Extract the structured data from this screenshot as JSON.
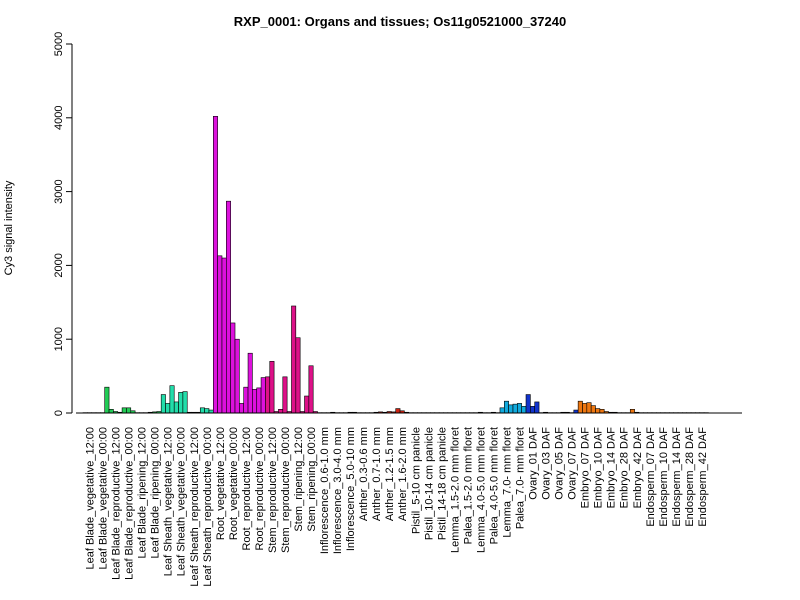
{
  "chart_data": {
    "type": "bar",
    "title": "RXP_0001: Organs and tissues; Os11g0521000_37240",
    "ylabel": "Cy3 signal intensity",
    "xlabel": "",
    "ylim": [
      0,
      5000
    ],
    "yticks": [
      0,
      1000,
      2000,
      3000,
      4000,
      5000
    ],
    "grid": false,
    "tick_labels": [
      "Leaf Blade_vegetative_12:00",
      "Leaf Blade_vegetative_00:00",
      "Leaf Blade_reproductive_12:00",
      "Leaf Blade_reproductive_00:00",
      "Leaf Blade_ripening_12:00",
      "Leaf Blade_ripening_00:00",
      "Leaf Sheath_vegetative_12:00",
      "Leaf Sheath_vegetative_00:00",
      "Leaf Sheath_reproductive_12:00",
      "Leaf Sheath_reproductive_00:00",
      "Root_vegetative_12:00",
      "Root_vegetative_00:00",
      "Root_reproductive_12:00",
      "Root_reproductive_00:00",
      "Stem_reproductive_12:00",
      "Stem_reproductive_00:00",
      "Stem_ripening_12:00",
      "Stem_ripening_00:00",
      "Inflorescence_0.6-1.0 mm",
      "Inflorescence_3.0-4.0 mm",
      "Inflorescence_5.0-10 mm",
      "Anther_0.3-0.6 mm",
      "Anther_0.7-1.0 mm",
      "Anther_1.2-1.5 mm",
      "Anther_1.6-2.0 mm",
      "Pistil_5-10 cm panicle",
      "Pistil_10-14 cm panicle",
      "Pistil_14-18 cm panicle",
      "Lemma_1.5-2.0 mm floret",
      "Palea_1.5-2.0 mm floret",
      "Lemma_4.0-5.0 mm floret",
      "Palea_4.0-5.0 mm floret",
      "Lemma_7.0- mm floret",
      "Palea_7.0- mm floret",
      "Ovary_01 DAF",
      "Ovary_03 DAF",
      "Ovary_05 DAF",
      "Ovary_07 DAF",
      "Embryo_07 DAF",
      "Embryo_10 DAF",
      "Embryo_14 DAF",
      "Embryo_28 DAF",
      "Embryo_42 DAF",
      "Endosperm_07 DAF",
      "Endosperm_10 DAF",
      "Endosperm_14 DAF",
      "Endosperm_28 DAF",
      "Endosperm_42 DAF"
    ],
    "groups": [
      {
        "color": "#22cc55",
        "values": [
          5,
          5,
          5
        ]
      },
      {
        "color": "#22cc55",
        "values": [
          5,
          5,
          350
        ]
      },
      {
        "color": "#22cc55",
        "values": [
          50,
          20,
          10
        ]
      },
      {
        "color": "#22cc55",
        "values": [
          70,
          70,
          30
        ]
      },
      {
        "color": "#22cc55",
        "values": [
          5,
          5,
          5
        ]
      },
      {
        "color": "#22cc55",
        "values": [
          10,
          15,
          20
        ]
      },
      {
        "color": "#22ddaa",
        "values": [
          250,
          130,
          370
        ]
      },
      {
        "color": "#22ddaa",
        "values": [
          150,
          280,
          290
        ]
      },
      {
        "color": "#22ddaa",
        "values": [
          10,
          10,
          10
        ]
      },
      {
        "color": "#22ddaa",
        "values": [
          70,
          60,
          40
        ]
      },
      {
        "color": "#dd11dd",
        "values": [
          4020,
          2130,
          2100
        ]
      },
      {
        "color": "#dd11dd",
        "values": [
          2870,
          1220,
          1000
        ]
      },
      {
        "color": "#dd11dd",
        "values": [
          130,
          350,
          810
        ]
      },
      {
        "color": "#dd11dd",
        "values": [
          320,
          340,
          480
        ]
      },
      {
        "color": "#dd1188",
        "values": [
          490,
          700,
          20
        ]
      },
      {
        "color": "#dd1188",
        "values": [
          50,
          490,
          20
        ]
      },
      {
        "color": "#dd1188",
        "values": [
          1450,
          1020,
          20
        ]
      },
      {
        "color": "#dd1188",
        "values": [
          230,
          640,
          20
        ]
      },
      {
        "color": "#993333",
        "values": [
          5,
          5,
          5
        ]
      },
      {
        "color": "#993333",
        "values": [
          10,
          5,
          5
        ]
      },
      {
        "color": "#993333",
        "values": [
          5,
          10,
          10
        ]
      },
      {
        "color": "#cc2211",
        "values": [
          5,
          5,
          5
        ]
      },
      {
        "color": "#cc2211",
        "values": [
          5,
          10,
          15
        ]
      },
      {
        "color": "#cc2211",
        "values": [
          10,
          20,
          15
        ]
      },
      {
        "color": "#cc2211",
        "values": [
          60,
          30,
          10
        ]
      },
      {
        "color": "#11aadd",
        "values": [
          5,
          5,
          5
        ]
      },
      {
        "color": "#11aadd",
        "values": [
          5,
          5,
          5
        ]
      },
      {
        "color": "#11aadd",
        "values": [
          5,
          5,
          5
        ]
      },
      {
        "color": "#11aadd",
        "values": [
          5,
          5,
          5
        ]
      },
      {
        "color": "#11aadd",
        "values": [
          5,
          5,
          5
        ]
      },
      {
        "color": "#11aadd",
        "values": [
          5,
          10,
          5
        ]
      },
      {
        "color": "#11aadd",
        "values": [
          5,
          10,
          5
        ]
      },
      {
        "color": "#11aadd",
        "values": [
          70,
          160,
          110
        ]
      },
      {
        "color": "#11aadd",
        "values": [
          120,
          130,
          90
        ]
      },
      {
        "color": "#1133cc",
        "values": [
          250,
          90,
          150
        ]
      },
      {
        "color": "#1133cc",
        "values": [
          5,
          10,
          5
        ]
      },
      {
        "color": "#1133cc",
        "values": [
          5,
          5,
          10
        ]
      },
      {
        "color": "#1133cc",
        "values": [
          10,
          5,
          40
        ]
      },
      {
        "color": "#ee7711",
        "values": [
          160,
          130,
          140
        ]
      },
      {
        "color": "#ee7711",
        "values": [
          100,
          60,
          50
        ]
      },
      {
        "color": "#ee7711",
        "values": [
          20,
          10,
          10
        ]
      },
      {
        "color": "#ee7711",
        "values": [
          5,
          5,
          5
        ]
      },
      {
        "color": "#ee7711",
        "values": [
          50,
          10,
          5
        ]
      },
      {
        "color": "#cc6611",
        "values": [
          5,
          5,
          5
        ]
      },
      {
        "color": "#cc6611",
        "values": [
          5,
          5,
          5
        ]
      },
      {
        "color": "#cc6611",
        "values": [
          5,
          5,
          5
        ]
      },
      {
        "color": "#cc6611",
        "values": [
          5,
          5,
          5
        ]
      },
      {
        "color": "#cc6611",
        "values": [
          5,
          5,
          5
        ]
      }
    ]
  }
}
